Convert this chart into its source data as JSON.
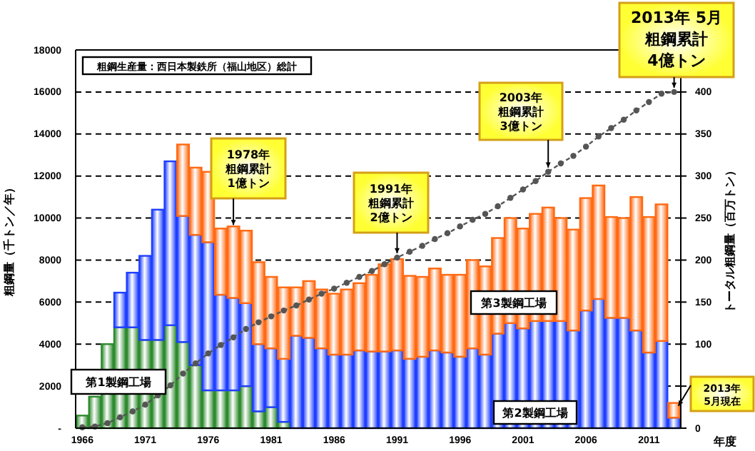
{
  "chart_data": {
    "type": "bar",
    "stacked": true,
    "title": "粗鋼生産量：西日本製鉄所（福山地区）総計",
    "ylabel": "粗鋼量（千トン／年）",
    "y2label": "トータル粗鋼量（百万トン）",
    "xlabel": "年度",
    "categories": [
      "1966",
      null,
      null,
      null,
      null,
      "1971",
      null,
      null,
      null,
      null,
      "1976",
      null,
      null,
      null,
      null,
      "1981",
      null,
      null,
      null,
      null,
      "1986",
      null,
      null,
      null,
      null,
      "1991",
      null,
      null,
      null,
      null,
      "1996",
      null,
      null,
      null,
      null,
      "2001",
      null,
      null,
      null,
      null,
      "2006",
      null,
      null,
      null,
      null,
      "2011",
      null,
      null
    ],
    "series": [
      {
        "name": "第1製鋼工場",
        "color": "#2e8b2e",
        "values": [
          600,
          1500,
          4000,
          4800,
          4800,
          4200,
          4200,
          4900,
          4100,
          3000,
          1800,
          1800,
          1800,
          2000,
          800,
          1000,
          300,
          null,
          null,
          null,
          null,
          null,
          null,
          null,
          null,
          null,
          null,
          null,
          null,
          null,
          null,
          null,
          null,
          null,
          null,
          null,
          null,
          null,
          null,
          null,
          null,
          null,
          null,
          null,
          null,
          null,
          null,
          null
        ]
      },
      {
        "name": "第2製鋼工場",
        "color": "#1f3fff",
        "values": [
          null,
          null,
          null,
          1650,
          2600,
          4000,
          6200,
          7800,
          6000,
          6200,
          7050,
          4550,
          4400,
          3950,
          3200,
          2800,
          3000,
          4400,
          4300,
          3800,
          3500,
          3500,
          3700,
          3650,
          3650,
          3700,
          3300,
          3400,
          3700,
          3600,
          3400,
          3800,
          3500,
          4500,
          5000,
          4750,
          5100,
          5100,
          5100,
          4650,
          5600,
          6150,
          5250,
          5250,
          4650,
          3600,
          4150,
          500
        ]
      },
      {
        "name": "第3製鋼工場",
        "color": "#ff6a13",
        "values": [
          null,
          null,
          null,
          null,
          null,
          null,
          null,
          null,
          3400,
          3200,
          3350,
          3150,
          3400,
          3450,
          3900,
          3400,
          3400,
          2300,
          2700,
          2800,
          2900,
          3100,
          3200,
          3650,
          4150,
          4350,
          3950,
          3800,
          3900,
          3700,
          3900,
          4200,
          4200,
          4550,
          5000,
          4750,
          5100,
          5400,
          4900,
          4800,
          5350,
          5400,
          4800,
          4750,
          6350,
          6450,
          6500,
          700
        ]
      },
      {
        "type": "line",
        "axis": "y2",
        "color": "#555555",
        "marker": "circle",
        "line_style": "dashed",
        "values": [
          1,
          2,
          6,
          13,
          20,
          28,
          39,
          51,
          65,
          77,
          89,
          99,
          108,
          118,
          126,
          133,
          140,
          146,
          153,
          160,
          166,
          173,
          180,
          187,
          195,
          203,
          210,
          217,
          225,
          232,
          240,
          248,
          255,
          264,
          274,
          284,
          294,
          305,
          315,
          324,
          335,
          347,
          357,
          367,
          378,
          388,
          398,
          400
        ]
      }
    ],
    "ylim": [
      0,
      18000
    ],
    "yticks": [
      {
        "value": 0,
        "label": "-"
      },
      2000,
      4000,
      6000,
      8000,
      10000,
      12000,
      14000,
      16000,
      18000
    ],
    "y2lim": [
      0,
      450
    ],
    "y2ticks": [
      0,
      {
        "value": 50,
        "label": null
      },
      100,
      150,
      200,
      250,
      300,
      350,
      400
    ],
    "grid": "y",
    "annotations": [
      "1978年粗鋼累計1億トン",
      "1991年粗鋼累計2億トン",
      "2003年粗鋼累計3億トン",
      "2013年 5月粗鋼累計4億トン",
      "2013年5月現在"
    ]
  }
}
